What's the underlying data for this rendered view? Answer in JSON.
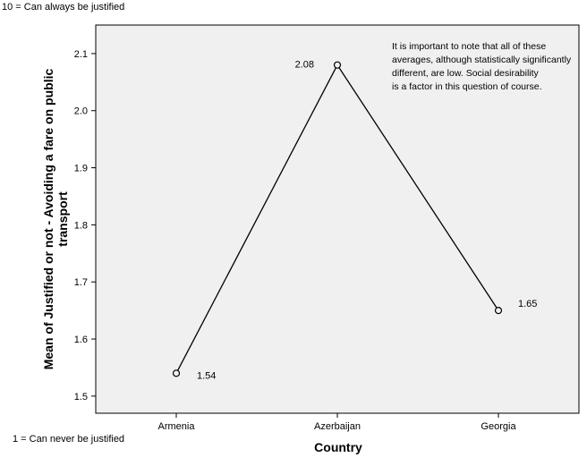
{
  "chart_data": {
    "type": "line",
    "categories": [
      "Armenia",
      "Azerbaijan",
      "Georgia"
    ],
    "values": [
      1.54,
      2.08,
      1.65
    ],
    "data_labels": [
      "1.54",
      "2.08",
      "1.65"
    ],
    "title": "",
    "xlabel": "Country",
    "ylabel_line1": "Mean of Justified or not - Avoiding a fare on public",
    "ylabel_line2": "transport",
    "ylim": [
      1.47,
      2.15
    ],
    "yticks": [
      1.5,
      1.6,
      1.7,
      1.8,
      1.9,
      2.0,
      2.1
    ],
    "ytick_labels": [
      "1.5",
      "1.6",
      "1.7",
      "1.8",
      "1.9",
      "2.0",
      "2.1"
    ],
    "grid": false,
    "marker": "open-circle",
    "annotation": [
      "It is important to note that all of these",
      "averages, although statistically significantly",
      "different, are low.  Social desirability",
      "is a factor in this question of course."
    ]
  },
  "scale_notes": {
    "top": "10 = Can always be justified",
    "bottom": "1 = Can never be justified"
  },
  "colors": {
    "plot_background": "#f0f0f0",
    "line": "#000000",
    "axis": "#000000"
  }
}
